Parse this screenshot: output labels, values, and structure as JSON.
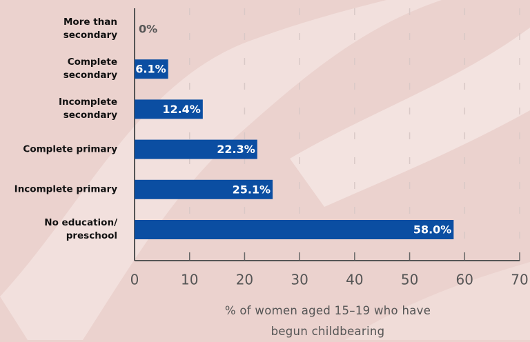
{
  "chart_data": {
    "type": "hbar",
    "categories": [
      "More than\nsecondary",
      "Complete\nsecondary",
      "Incomplete\nsecondary",
      "Complete primary",
      "Incomplete primary",
      "No education/\npreschool"
    ],
    "values": [
      0,
      6.1,
      12.4,
      22.3,
      25.1,
      58.0
    ],
    "value_labels": [
      "0%",
      "6.1%",
      "12.4%",
      "22.3%",
      "25.1%",
      "58.0%"
    ],
    "color": "#0b4ea2",
    "x_label": "% of women aged 15–19 who have\nbegun childbearing",
    "xlim": [
      0,
      70
    ],
    "xticks": [
      0,
      10,
      20,
      30,
      40,
      50,
      60,
      70
    ],
    "grid": true
  }
}
